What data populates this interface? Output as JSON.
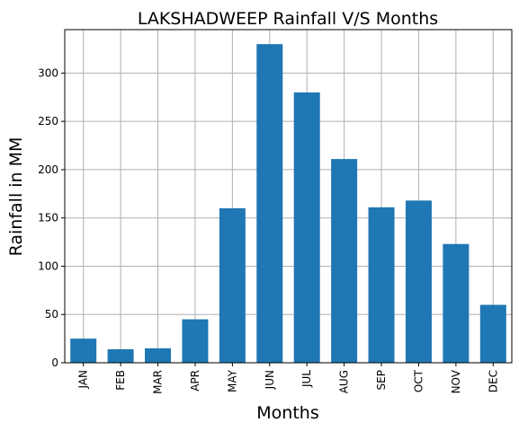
{
  "chart_data": {
    "type": "bar",
    "title": "LAKSHADWEEP Rainfall V/S Months",
    "xlabel": "Months",
    "ylabel": "Rainfall in MM",
    "categories": [
      "JAN",
      "FEB",
      "MAR",
      "APR",
      "MAY",
      "JUN",
      "JUL",
      "AUG",
      "SEP",
      "OCT",
      "NOV",
      "DEC"
    ],
    "values": [
      25,
      14,
      15,
      45,
      160,
      330,
      280,
      211,
      161,
      168,
      123,
      60
    ],
    "ylim": [
      0,
      345
    ],
    "yticks": [
      0,
      50,
      100,
      150,
      200,
      250,
      300
    ],
    "grid": true,
    "bar_color": "#1f77b4"
  }
}
